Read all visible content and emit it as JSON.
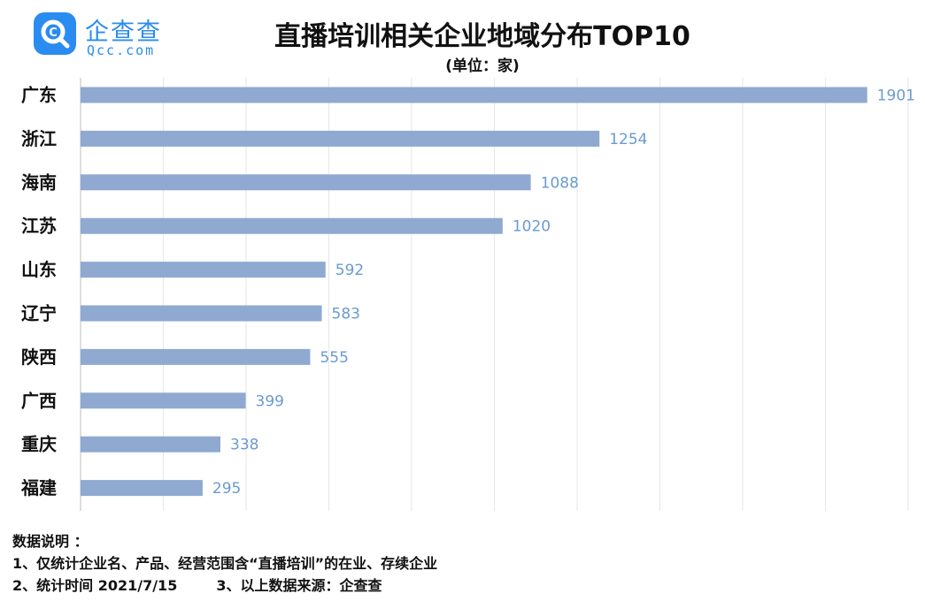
{
  "header": {
    "logo_name": "企查查",
    "logo_domain": "Qcc.com",
    "title": "直播培训相关企业地域分布TOP10",
    "subtitle": "(单位：家)"
  },
  "chart_data": {
    "type": "bar",
    "orientation": "horizontal",
    "title": "直播培训相关企业地域分布TOP10",
    "unit": "(单位：家)",
    "categories": [
      "广东",
      "浙江",
      "海南",
      "江苏",
      "山东",
      "辽宁",
      "陕西",
      "广西",
      "重庆",
      "福建"
    ],
    "values": [
      1901,
      1254,
      1088,
      1020,
      592,
      583,
      555,
      399,
      338,
      295
    ],
    "xlim": [
      0,
      2000
    ],
    "xticks": [
      0,
      200,
      400,
      600,
      800,
      1000,
      1200,
      1400,
      1600,
      1800,
      2000
    ],
    "grid": true,
    "bar_color": "#8fa9d1",
    "label_color": "#6a9bd0"
  },
  "notes": {
    "heading": "数据说明 ：",
    "line1": "1、仅统计企业名、产品、经营范围含“直播培训”的在业、存续企业",
    "line2a": "2、统计时间 2021/7/15",
    "line2b": "3、以上数据来源：企查查"
  }
}
